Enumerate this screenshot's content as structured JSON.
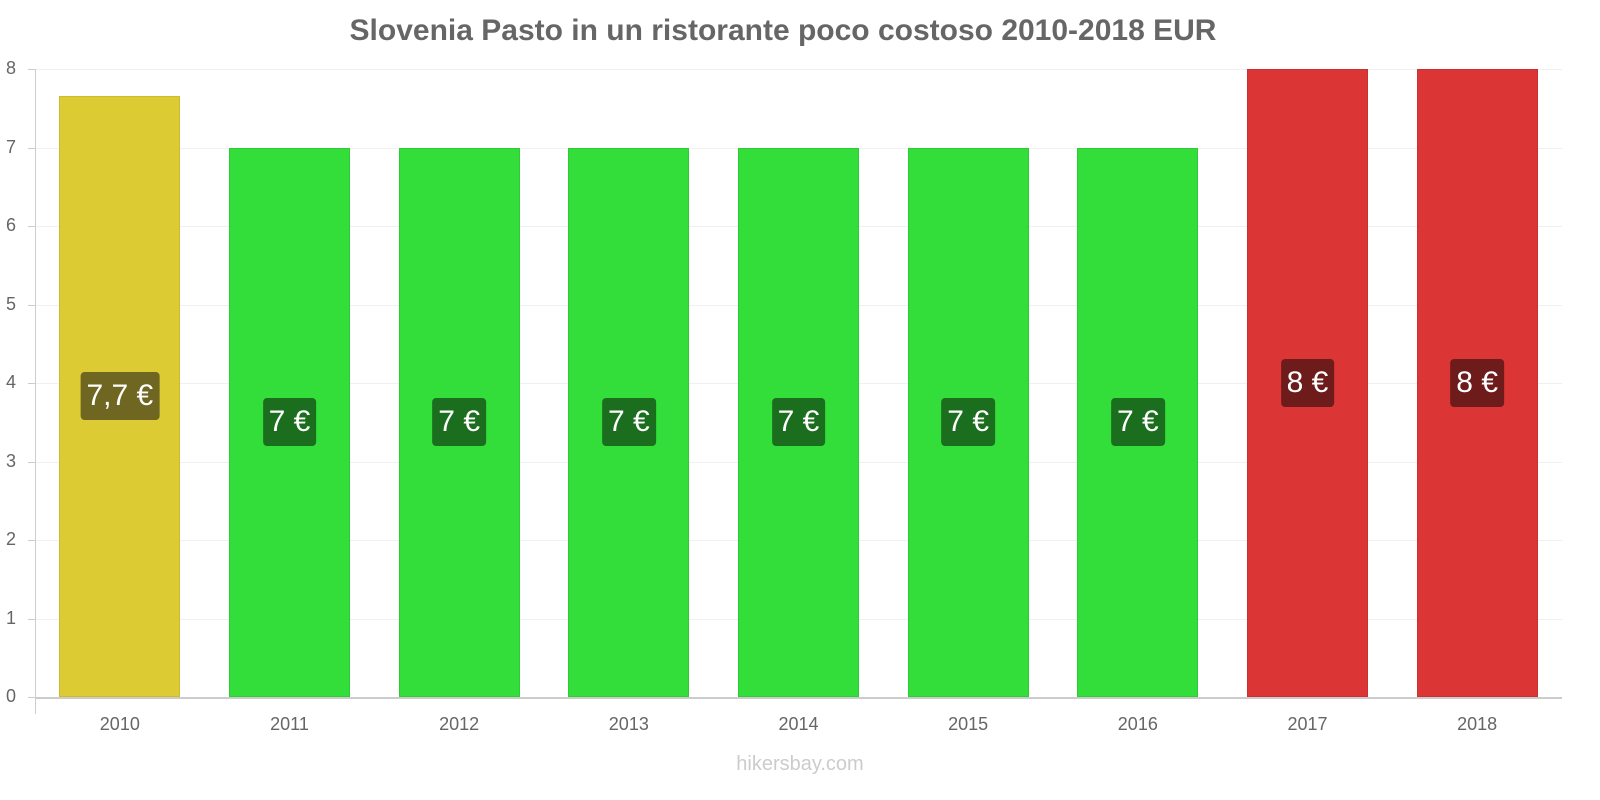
{
  "chart_data": {
    "type": "bar",
    "title": "Slovenia Pasto in un ristorante poco costoso 2010-2018 EUR",
    "xlabel": "",
    "ylabel": "",
    "ylim": [
      0,
      8
    ],
    "yticks": [
      "0",
      "1",
      "2",
      "3",
      "4",
      "5",
      "6",
      "7",
      "8"
    ],
    "grid": true,
    "legend": null,
    "categories": [
      "2010",
      "2011",
      "2012",
      "2013",
      "2014",
      "2015",
      "2016",
      "2017",
      "2018"
    ],
    "values": [
      7.66,
      7,
      7,
      7,
      7,
      7,
      7,
      8,
      8
    ],
    "data_labels": [
      "7,7 €",
      "7 €",
      "7 €",
      "7 €",
      "7 €",
      "7 €",
      "7 €",
      "8 €",
      "8 €"
    ],
    "bar_colors": [
      "#dccb33",
      "#33dd3a",
      "#33dd3a",
      "#33dd3a",
      "#33dd3a",
      "#33dd3a",
      "#33dd3a",
      "#dc3535",
      "#dc3535"
    ],
    "label_colors": [
      "#6e6621",
      "#1b6e1e",
      "#1b6e1e",
      "#1b6e1e",
      "#1b6e1e",
      "#1b6e1e",
      "#1b6e1e",
      "#6e1b1b",
      "#6e1b1b"
    ]
  },
  "watermark": "hikersbay.com"
}
